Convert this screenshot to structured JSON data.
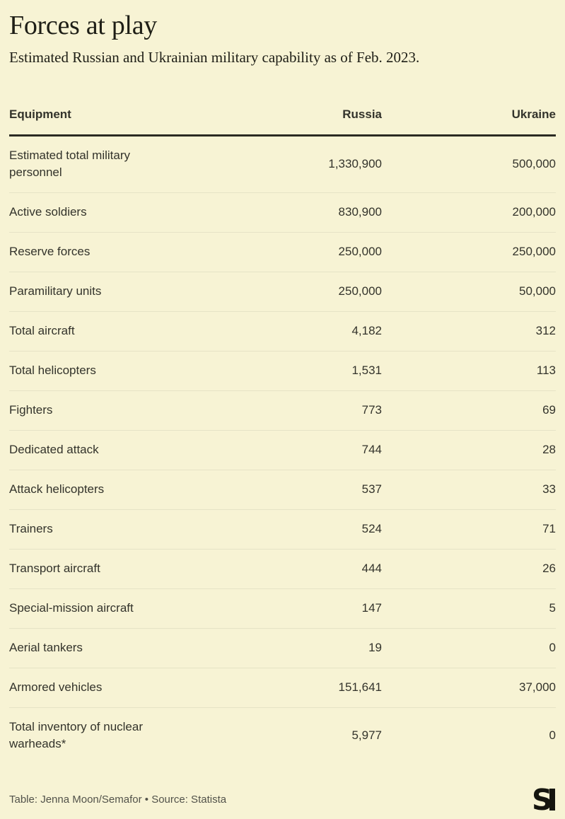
{
  "header": {
    "title": "Forces at play",
    "subtitle": "Estimated Russian and Ukrainian military capability as of Feb. 2023."
  },
  "chart_data": {
    "type": "table",
    "title": "Forces at play",
    "subtitle": "Estimated Russian and Ukrainian military capability as of Feb. 2023.",
    "columns": [
      "Equipment",
      "Russia",
      "Ukraine"
    ],
    "rows": [
      [
        "Estimated total military personnel",
        "1,330,900",
        "500,000"
      ],
      [
        "Active soldiers",
        "830,900",
        "200,000"
      ],
      [
        "Reserve forces",
        "250,000",
        "250,000"
      ],
      [
        "Paramilitary units",
        "250,000",
        "50,000"
      ],
      [
        "Total aircraft",
        "4,182",
        "312"
      ],
      [
        "Total helicopters",
        "1,531",
        "113"
      ],
      [
        "Fighters",
        "773",
        "69"
      ],
      [
        "Dedicated attack",
        "744",
        "28"
      ],
      [
        "Attack helicopters",
        "537",
        "33"
      ],
      [
        "Trainers",
        "524",
        "71"
      ],
      [
        "Transport aircraft",
        "444",
        "26"
      ],
      [
        "Special-mission aircraft",
        "147",
        "5"
      ],
      [
        "Aerial tankers",
        "19",
        "0"
      ],
      [
        "Armored vehicles",
        "151,641",
        "37,000"
      ],
      [
        "Total inventory of nuclear warheads*",
        "5,977",
        "0"
      ]
    ],
    "layout": {
      "grid": "off",
      "value_alignment": "right",
      "legend": "none"
    }
  },
  "footer": {
    "credit": "Table: Jenna Moon/Semafor • Source: Statista",
    "logo": "semafor-logo"
  },
  "colors": {
    "background": "#F7F3D4",
    "title_text": "#1E1E16",
    "cell_text": "#33332B",
    "header_rule": "#2B2B22",
    "row_divider": "#E6E3C6",
    "credit_text": "#52524A",
    "logo_black": "#15150F"
  }
}
